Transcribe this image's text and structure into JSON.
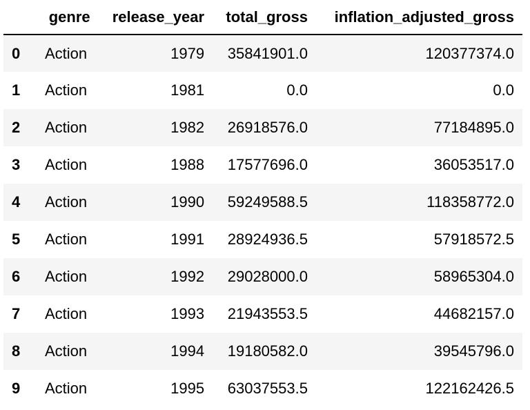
{
  "table": {
    "columns": [
      "genre",
      "release_year",
      "total_gross",
      "inflation_adjusted_gross"
    ],
    "rows": [
      {
        "index": "0",
        "genre": "Action",
        "release_year": "1979",
        "total_gross": "35841901.0",
        "inflation_adjusted_gross": "120377374.0"
      },
      {
        "index": "1",
        "genre": "Action",
        "release_year": "1981",
        "total_gross": "0.0",
        "inflation_adjusted_gross": "0.0"
      },
      {
        "index": "2",
        "genre": "Action",
        "release_year": "1982",
        "total_gross": "26918576.0",
        "inflation_adjusted_gross": "77184895.0"
      },
      {
        "index": "3",
        "genre": "Action",
        "release_year": "1988",
        "total_gross": "17577696.0",
        "inflation_adjusted_gross": "36053517.0"
      },
      {
        "index": "4",
        "genre": "Action",
        "release_year": "1990",
        "total_gross": "59249588.5",
        "inflation_adjusted_gross": "118358772.0"
      },
      {
        "index": "5",
        "genre": "Action",
        "release_year": "1991",
        "total_gross": "28924936.5",
        "inflation_adjusted_gross": "57918572.5"
      },
      {
        "index": "6",
        "genre": "Action",
        "release_year": "1992",
        "total_gross": "29028000.0",
        "inflation_adjusted_gross": "58965304.0"
      },
      {
        "index": "7",
        "genre": "Action",
        "release_year": "1993",
        "total_gross": "21943553.5",
        "inflation_adjusted_gross": "44682157.0"
      },
      {
        "index": "8",
        "genre": "Action",
        "release_year": "1994",
        "total_gross": "19180582.0",
        "inflation_adjusted_gross": "39545796.0"
      },
      {
        "index": "9",
        "genre": "Action",
        "release_year": "1995",
        "total_gross": "63037553.5",
        "inflation_adjusted_gross": "122162426.5"
      }
    ]
  }
}
